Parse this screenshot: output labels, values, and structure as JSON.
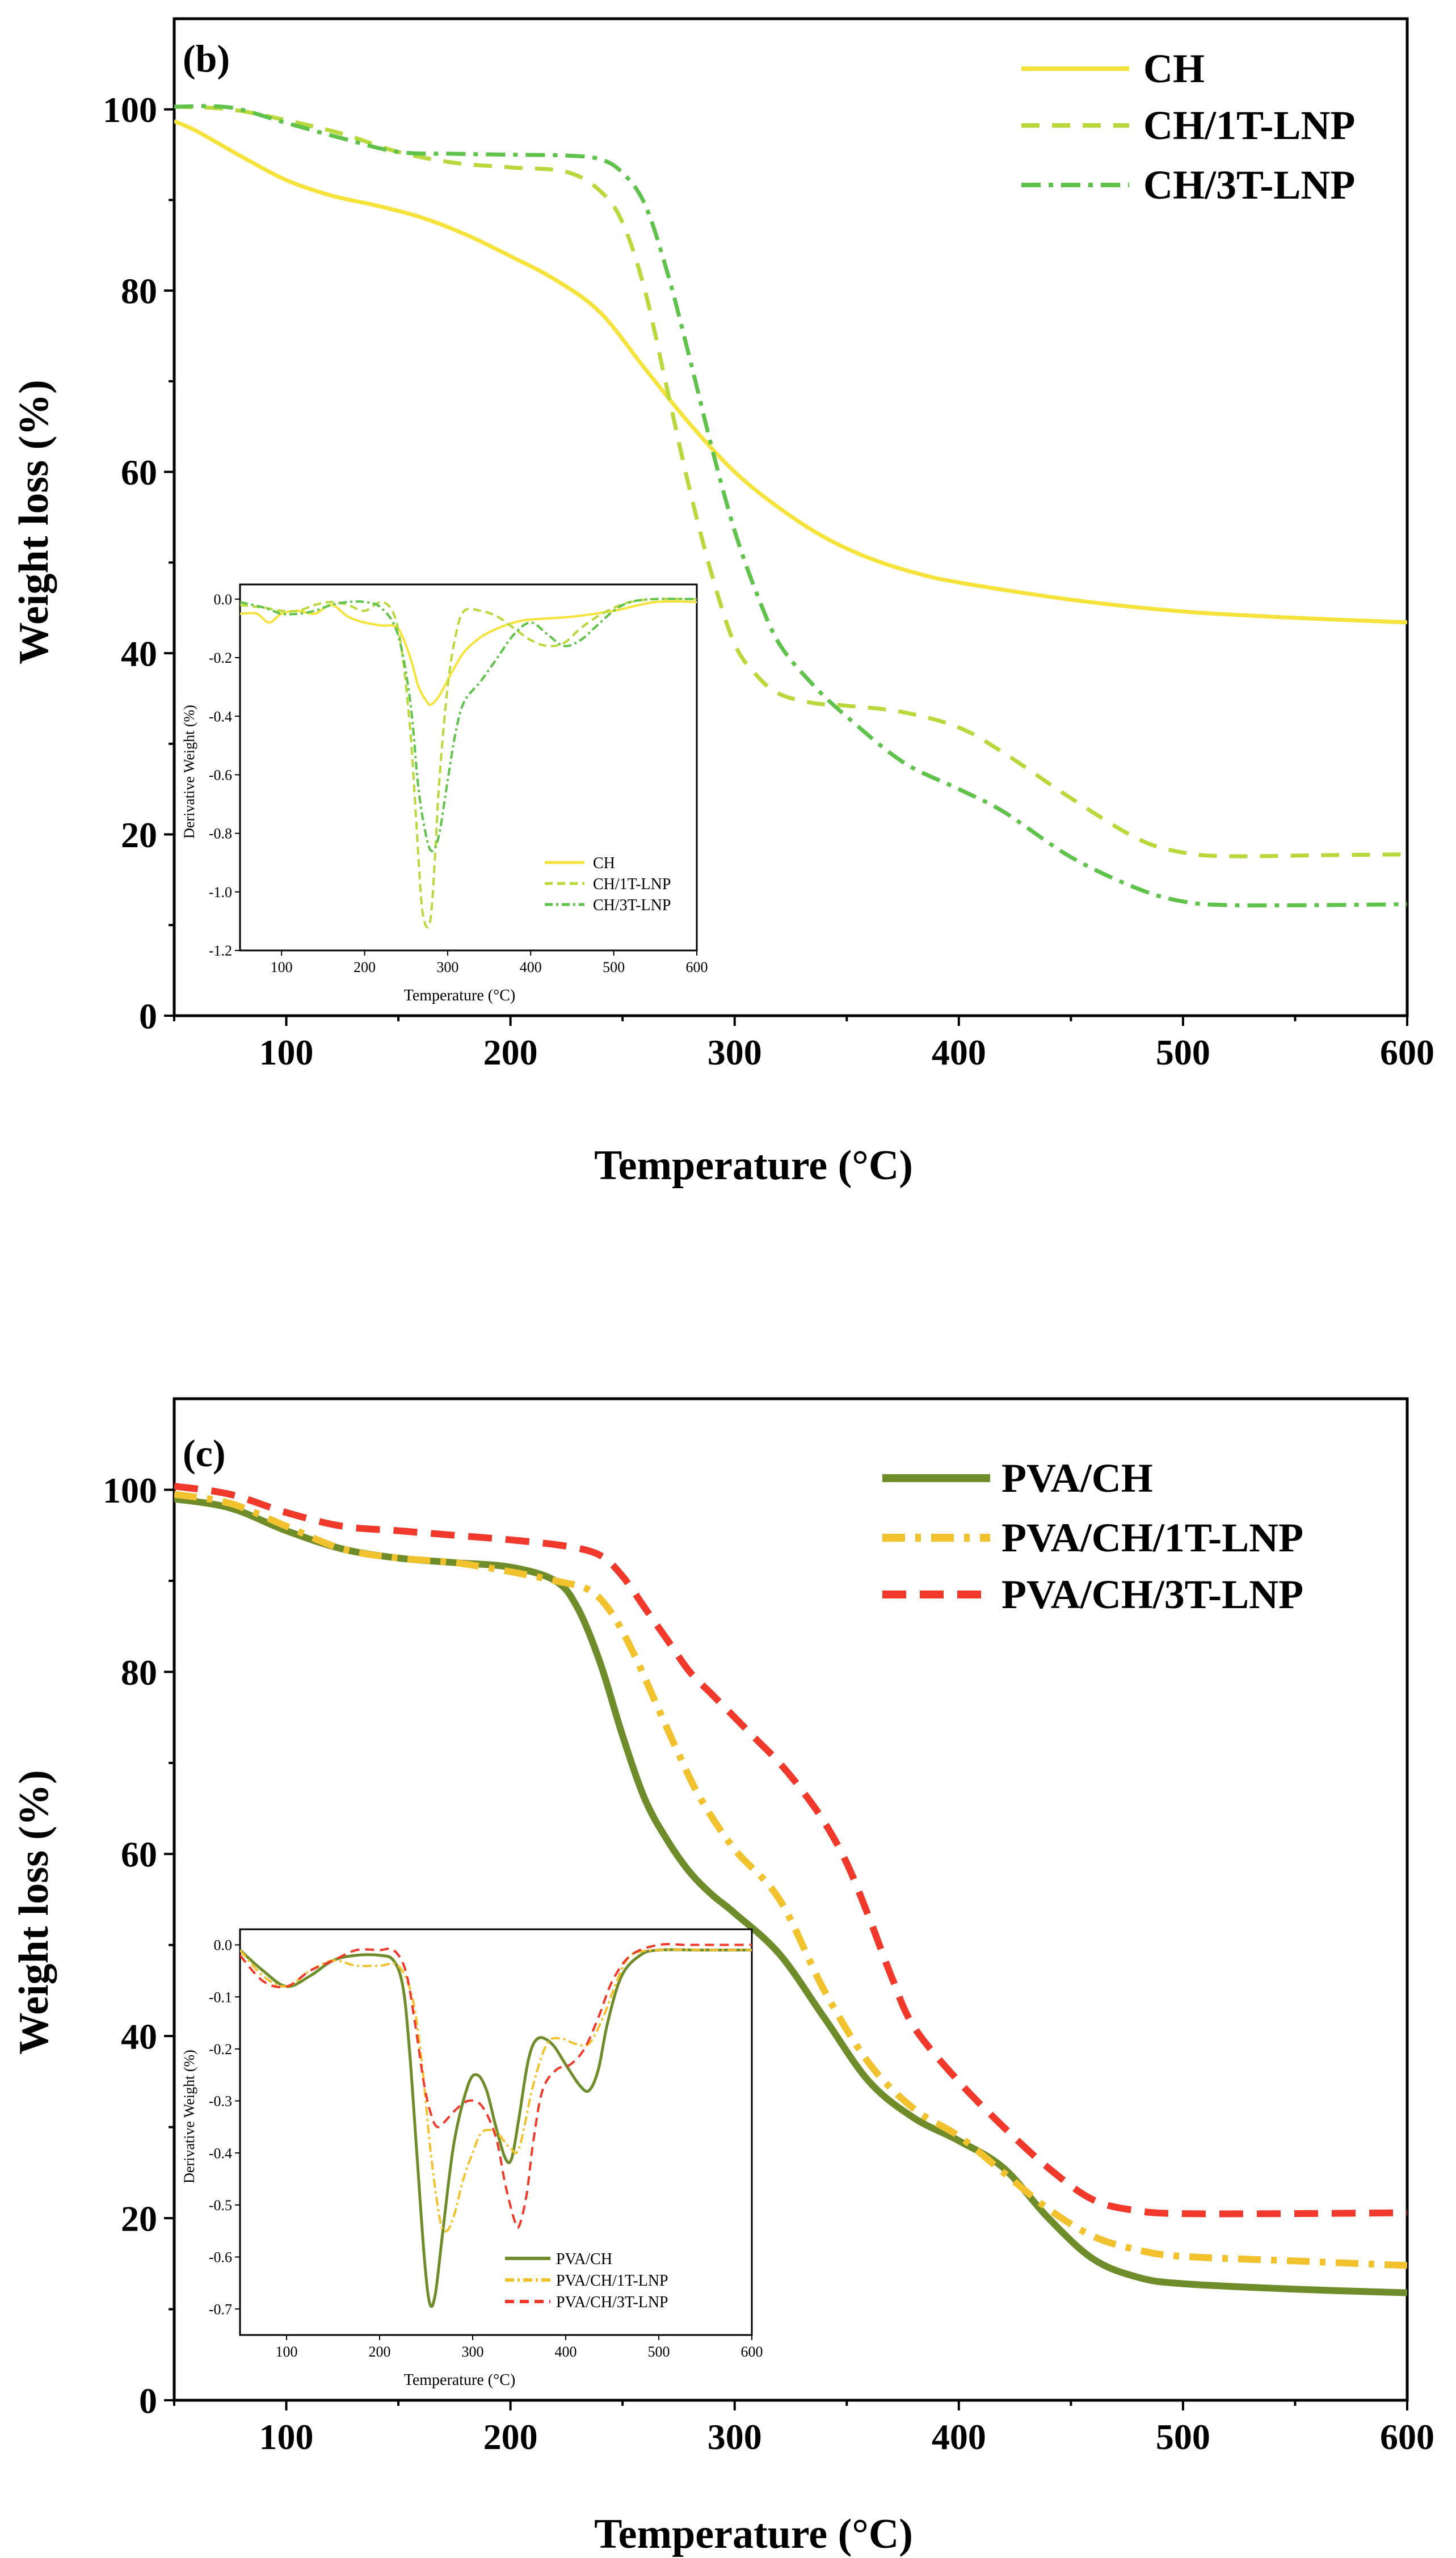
{
  "chart_data": [
    {
      "type": "line",
      "panel_label": "(b)",
      "xlabel": "Temperature (°C)",
      "ylabel": "Weight loss (%)",
      "xlim": [
        50,
        600
      ],
      "ylim": [
        0,
        110
      ],
      "xticks": [
        100,
        200,
        300,
        400,
        500,
        600
      ],
      "yticks": [
        0,
        20,
        40,
        60,
        80,
        100
      ],
      "legend": "top-right",
      "series": [
        {
          "name": "CH",
          "color": "#f5e33b",
          "dash": "solid",
          "x": [
            50,
            60,
            80,
            100,
            120,
            140,
            160,
            180,
            200,
            220,
            240,
            260,
            280,
            300,
            320,
            340,
            360,
            380,
            400,
            450,
            500,
            550,
            600
          ],
          "y": [
            98.7,
            97.6,
            94.8,
            92.2,
            90.5,
            89.4,
            88.1,
            86.2,
            83.8,
            81.2,
            77.6,
            71.4,
            65.3,
            60.0,
            56.0,
            52.8,
            50.5,
            48.9,
            47.8,
            45.9,
            44.6,
            43.9,
            43.4
          ]
        },
        {
          "name": "CH/1T-LNP",
          "color": "#b9d83c",
          "dash": "dashed",
          "x": [
            50,
            75,
            100,
            125,
            150,
            175,
            200,
            225,
            240,
            250,
            260,
            270,
            280,
            290,
            300,
            310,
            320,
            335,
            350,
            375,
            400,
            420,
            450,
            480,
            500,
            520,
            560,
            600
          ],
          "y": [
            100.3,
            100.0,
            98.8,
            97.3,
            95.3,
            94.1,
            93.6,
            93.1,
            91.0,
            87.5,
            80.0,
            69.0,
            58.0,
            48.5,
            41.0,
            37.5,
            35.5,
            34.5,
            34.2,
            33.5,
            31.8,
            29.0,
            24.0,
            19.5,
            18.0,
            17.6,
            17.7,
            17.8
          ]
        },
        {
          "name": "CH/3T-LNP",
          "color": "#5fc24a",
          "dash": "dashdot",
          "x": [
            50,
            75,
            100,
            125,
            150,
            175,
            200,
            225,
            240,
            250,
            260,
            270,
            280,
            290,
            300,
            310,
            320,
            335,
            350,
            375,
            400,
            420,
            450,
            480,
            500,
            520,
            560,
            600
          ],
          "y": [
            100.3,
            100.2,
            98.5,
            96.8,
            95.3,
            95.1,
            95.0,
            94.9,
            94.5,
            93.0,
            89.5,
            82.0,
            72.5,
            62.5,
            53.5,
            46.5,
            41.0,
            36.5,
            33.0,
            28.0,
            25.0,
            22.5,
            17.5,
            14.0,
            12.6,
            12.2,
            12.2,
            12.3
          ]
        }
      ],
      "inset": {
        "xlabel": "Temperature (°C)",
        "ylabel": "Derivative Weight (%)",
        "xlim": [
          50,
          600
        ],
        "ylim": [
          -1.2,
          0.05
        ],
        "xticks": [
          100,
          200,
          300,
          400,
          500,
          600
        ],
        "yticks": [
          -1.2,
          -1.0,
          -0.8,
          -0.6,
          -0.4,
          -0.2,
          0.0
        ],
        "legend": "bottom-right",
        "series": [
          {
            "name": "CH",
            "x": [
              50,
              70,
              85,
              100,
              120,
              140,
              160,
              180,
              200,
              220,
              240,
              255,
              265,
              275,
              280,
              290,
              305,
              320,
              340,
              360,
              380,
              400,
              450,
              500,
              550,
              600
            ],
            "y": [
              -0.05,
              -0.05,
              -0.08,
              -0.05,
              -0.04,
              -0.05,
              -0.02,
              -0.06,
              -0.08,
              -0.09,
              -0.1,
              -0.2,
              -0.3,
              -0.35,
              -0.36,
              -0.33,
              -0.25,
              -0.18,
              -0.13,
              -0.1,
              -0.08,
              -0.07,
              -0.06,
              -0.04,
              -0.01,
              -0.01
            ]
          },
          {
            "name": "CH/1T-LNP",
            "x": [
              50,
              80,
              100,
              120,
              140,
              160,
              180,
              200,
              220,
              235,
              245,
              255,
              262,
              268,
              272,
              276,
              280,
              284,
              290,
              300,
              310,
              320,
              340,
              360,
              380,
              400,
              420,
              440,
              460,
              480,
              500,
              520,
              550,
              600
            ],
            "y": [
              -0.02,
              -0.03,
              -0.04,
              -0.04,
              -0.02,
              -0.01,
              -0.02,
              -0.04,
              -0.01,
              -0.05,
              -0.18,
              -0.45,
              -0.75,
              -1.02,
              -1.1,
              -1.12,
              -1.08,
              -0.92,
              -0.62,
              -0.3,
              -0.12,
              -0.04,
              -0.04,
              -0.06,
              -0.1,
              -0.14,
              -0.16,
              -0.15,
              -0.1,
              -0.06,
              -0.03,
              -0.01,
              0.0,
              0.0
            ]
          },
          {
            "name": "CH/3T-LNP",
            "x": [
              50,
              80,
              100,
              120,
              140,
              160,
              180,
              200,
              220,
              240,
              255,
              265,
              275,
              282,
              290,
              300,
              310,
              320,
              340,
              360,
              380,
              400,
              420,
              440,
              460,
              480,
              500,
              520,
              550,
              600
            ],
            "y": [
              -0.01,
              -0.03,
              -0.05,
              -0.05,
              -0.04,
              -0.02,
              -0.01,
              -0.01,
              -0.03,
              -0.12,
              -0.35,
              -0.65,
              -0.82,
              -0.86,
              -0.8,
              -0.62,
              -0.45,
              -0.35,
              -0.28,
              -0.2,
              -0.12,
              -0.08,
              -0.12,
              -0.16,
              -0.14,
              -0.09,
              -0.04,
              -0.01,
              0.0,
              0.0
            ]
          }
        ]
      }
    },
    {
      "type": "line",
      "panel_label": "(c)",
      "xlabel": "Temperature (°C)",
      "ylabel": "Weight loss (%)",
      "xlim": [
        50,
        600
      ],
      "ylim": [
        0,
        110
      ],
      "xticks": [
        100,
        200,
        300,
        400,
        500,
        600
      ],
      "yticks": [
        0,
        20,
        40,
        60,
        80,
        100
      ],
      "legend": "top-right",
      "series": [
        {
          "name": "PVA/CH",
          "color": "#6f8c2a",
          "dash": "solid",
          "x": [
            50,
            75,
            100,
            125,
            150,
            175,
            200,
            220,
            230,
            240,
            250,
            260,
            270,
            280,
            290,
            300,
            320,
            340,
            360,
            380,
            400,
            420,
            440,
            460,
            480,
            500,
            550,
            600
          ],
          "y": [
            99.0,
            98.0,
            95.5,
            93.5,
            92.5,
            92.0,
            91.5,
            90.0,
            87.0,
            81.0,
            73.0,
            66.0,
            61.5,
            58.0,
            55.5,
            53.5,
            49.0,
            42.0,
            35.0,
            31.0,
            28.5,
            25.5,
            20.0,
            15.5,
            13.5,
            12.8,
            12.2,
            11.8
          ]
        },
        {
          "name": "PVA/CH/1T-LNP",
          "color": "#f2c22e",
          "dash": "dashdot",
          "x": [
            50,
            75,
            100,
            125,
            150,
            175,
            200,
            220,
            235,
            245,
            255,
            265,
            275,
            285,
            300,
            320,
            340,
            360,
            380,
            400,
            420,
            440,
            460,
            480,
            500,
            550,
            600
          ],
          "y": [
            99.5,
            98.5,
            96.0,
            93.5,
            92.5,
            92.0,
            91.0,
            90.0,
            89.0,
            86.5,
            82.0,
            76.5,
            71.0,
            66.0,
            60.5,
            55.0,
            45.0,
            37.0,
            32.0,
            29.0,
            25.0,
            21.0,
            18.0,
            16.5,
            15.8,
            15.3,
            14.8
          ]
        },
        {
          "name": "PVA/CH/3T-LNP",
          "color": "#f0392b",
          "dash": "dashed",
          "x": [
            50,
            75,
            100,
            125,
            150,
            175,
            200,
            225,
            240,
            250,
            260,
            270,
            280,
            290,
            300,
            310,
            320,
            330,
            340,
            350,
            360,
            370,
            380,
            400,
            420,
            440,
            460,
            480,
            500,
            550,
            600
          ],
          "y": [
            100.4,
            99.5,
            97.5,
            96.0,
            95.5,
            95.0,
            94.5,
            93.8,
            92.8,
            90.5,
            87.0,
            83.5,
            80.0,
            77.5,
            75.0,
            72.5,
            70.0,
            67.0,
            63.5,
            59.0,
            53.0,
            46.5,
            41.0,
            35.0,
            30.0,
            25.5,
            22.0,
            20.8,
            20.5,
            20.5,
            20.6
          ]
        }
      ],
      "inset": {
        "xlabel": "Temperature (°C)",
        "ylabel": "Derivative Weight (%)",
        "xlim": [
          50,
          600
        ],
        "ylim": [
          -0.75,
          0.03
        ],
        "xticks": [
          100,
          200,
          300,
          400,
          500,
          600
        ],
        "yticks": [
          -0.7,
          -0.6,
          -0.5,
          -0.4,
          -0.3,
          -0.2,
          -0.1,
          0.0
        ],
        "legend": "bottom-right",
        "series": [
          {
            "name": "PVA/CH",
            "x": [
              50,
              75,
              100,
              125,
              150,
              175,
              200,
              215,
              225,
              232,
              240,
              248,
              254,
              260,
              268,
              280,
              295,
              305,
              315,
              325,
              335,
              342,
              350,
              360,
              370,
              385,
              400,
              415,
              425,
              435,
              445,
              460,
              480,
              500,
              550,
              600
            ],
            "y": [
              -0.01,
              -0.05,
              -0.08,
              -0.06,
              -0.03,
              -0.02,
              -0.02,
              -0.03,
              -0.08,
              -0.2,
              -0.4,
              -0.6,
              -0.69,
              -0.67,
              -0.55,
              -0.38,
              -0.27,
              -0.25,
              -0.28,
              -0.35,
              -0.41,
              -0.41,
              -0.33,
              -0.22,
              -0.18,
              -0.19,
              -0.23,
              -0.27,
              -0.28,
              -0.24,
              -0.15,
              -0.06,
              -0.02,
              -0.01,
              -0.01,
              -0.01
            ]
          },
          {
            "name": "PVA/CH/1T-LNP",
            "x": [
              50,
              75,
              100,
              125,
              150,
              175,
              200,
              220,
              235,
              245,
              255,
              265,
              272,
              280,
              290,
              300,
              310,
              325,
              340,
              350,
              365,
              380,
              395,
              410,
              425,
              440,
              455,
              470,
              500,
              550,
              600
            ],
            "y": [
              -0.01,
              -0.06,
              -0.08,
              -0.05,
              -0.03,
              -0.04,
              -0.04,
              -0.04,
              -0.1,
              -0.22,
              -0.4,
              -0.53,
              -0.55,
              -0.52,
              -0.45,
              -0.4,
              -0.36,
              -0.36,
              -0.39,
              -0.39,
              -0.27,
              -0.19,
              -0.18,
              -0.19,
              -0.19,
              -0.14,
              -0.07,
              -0.02,
              -0.01,
              -0.01,
              -0.01
            ]
          },
          {
            "name": "PVA/CH/3T-LNP",
            "x": [
              50,
              75,
              100,
              125,
              150,
              175,
              200,
              215,
              228,
              238,
              248,
              256,
              262,
              270,
              280,
              295,
              310,
              325,
              335,
              345,
              350,
              358,
              365,
              375,
              390,
              405,
              420,
              435,
              450,
              470,
              500,
              530,
              560,
              600
            ],
            "y": [
              -0.02,
              -0.07,
              -0.08,
              -0.05,
              -0.03,
              -0.01,
              -0.01,
              -0.01,
              -0.05,
              -0.15,
              -0.27,
              -0.33,
              -0.35,
              -0.34,
              -0.32,
              -0.3,
              -0.31,
              -0.37,
              -0.46,
              -0.53,
              -0.54,
              -0.48,
              -0.38,
              -0.28,
              -0.24,
              -0.23,
              -0.2,
              -0.14,
              -0.07,
              -0.02,
              0.0,
              0.0,
              0.0,
              0.0
            ]
          }
        ]
      }
    }
  ]
}
